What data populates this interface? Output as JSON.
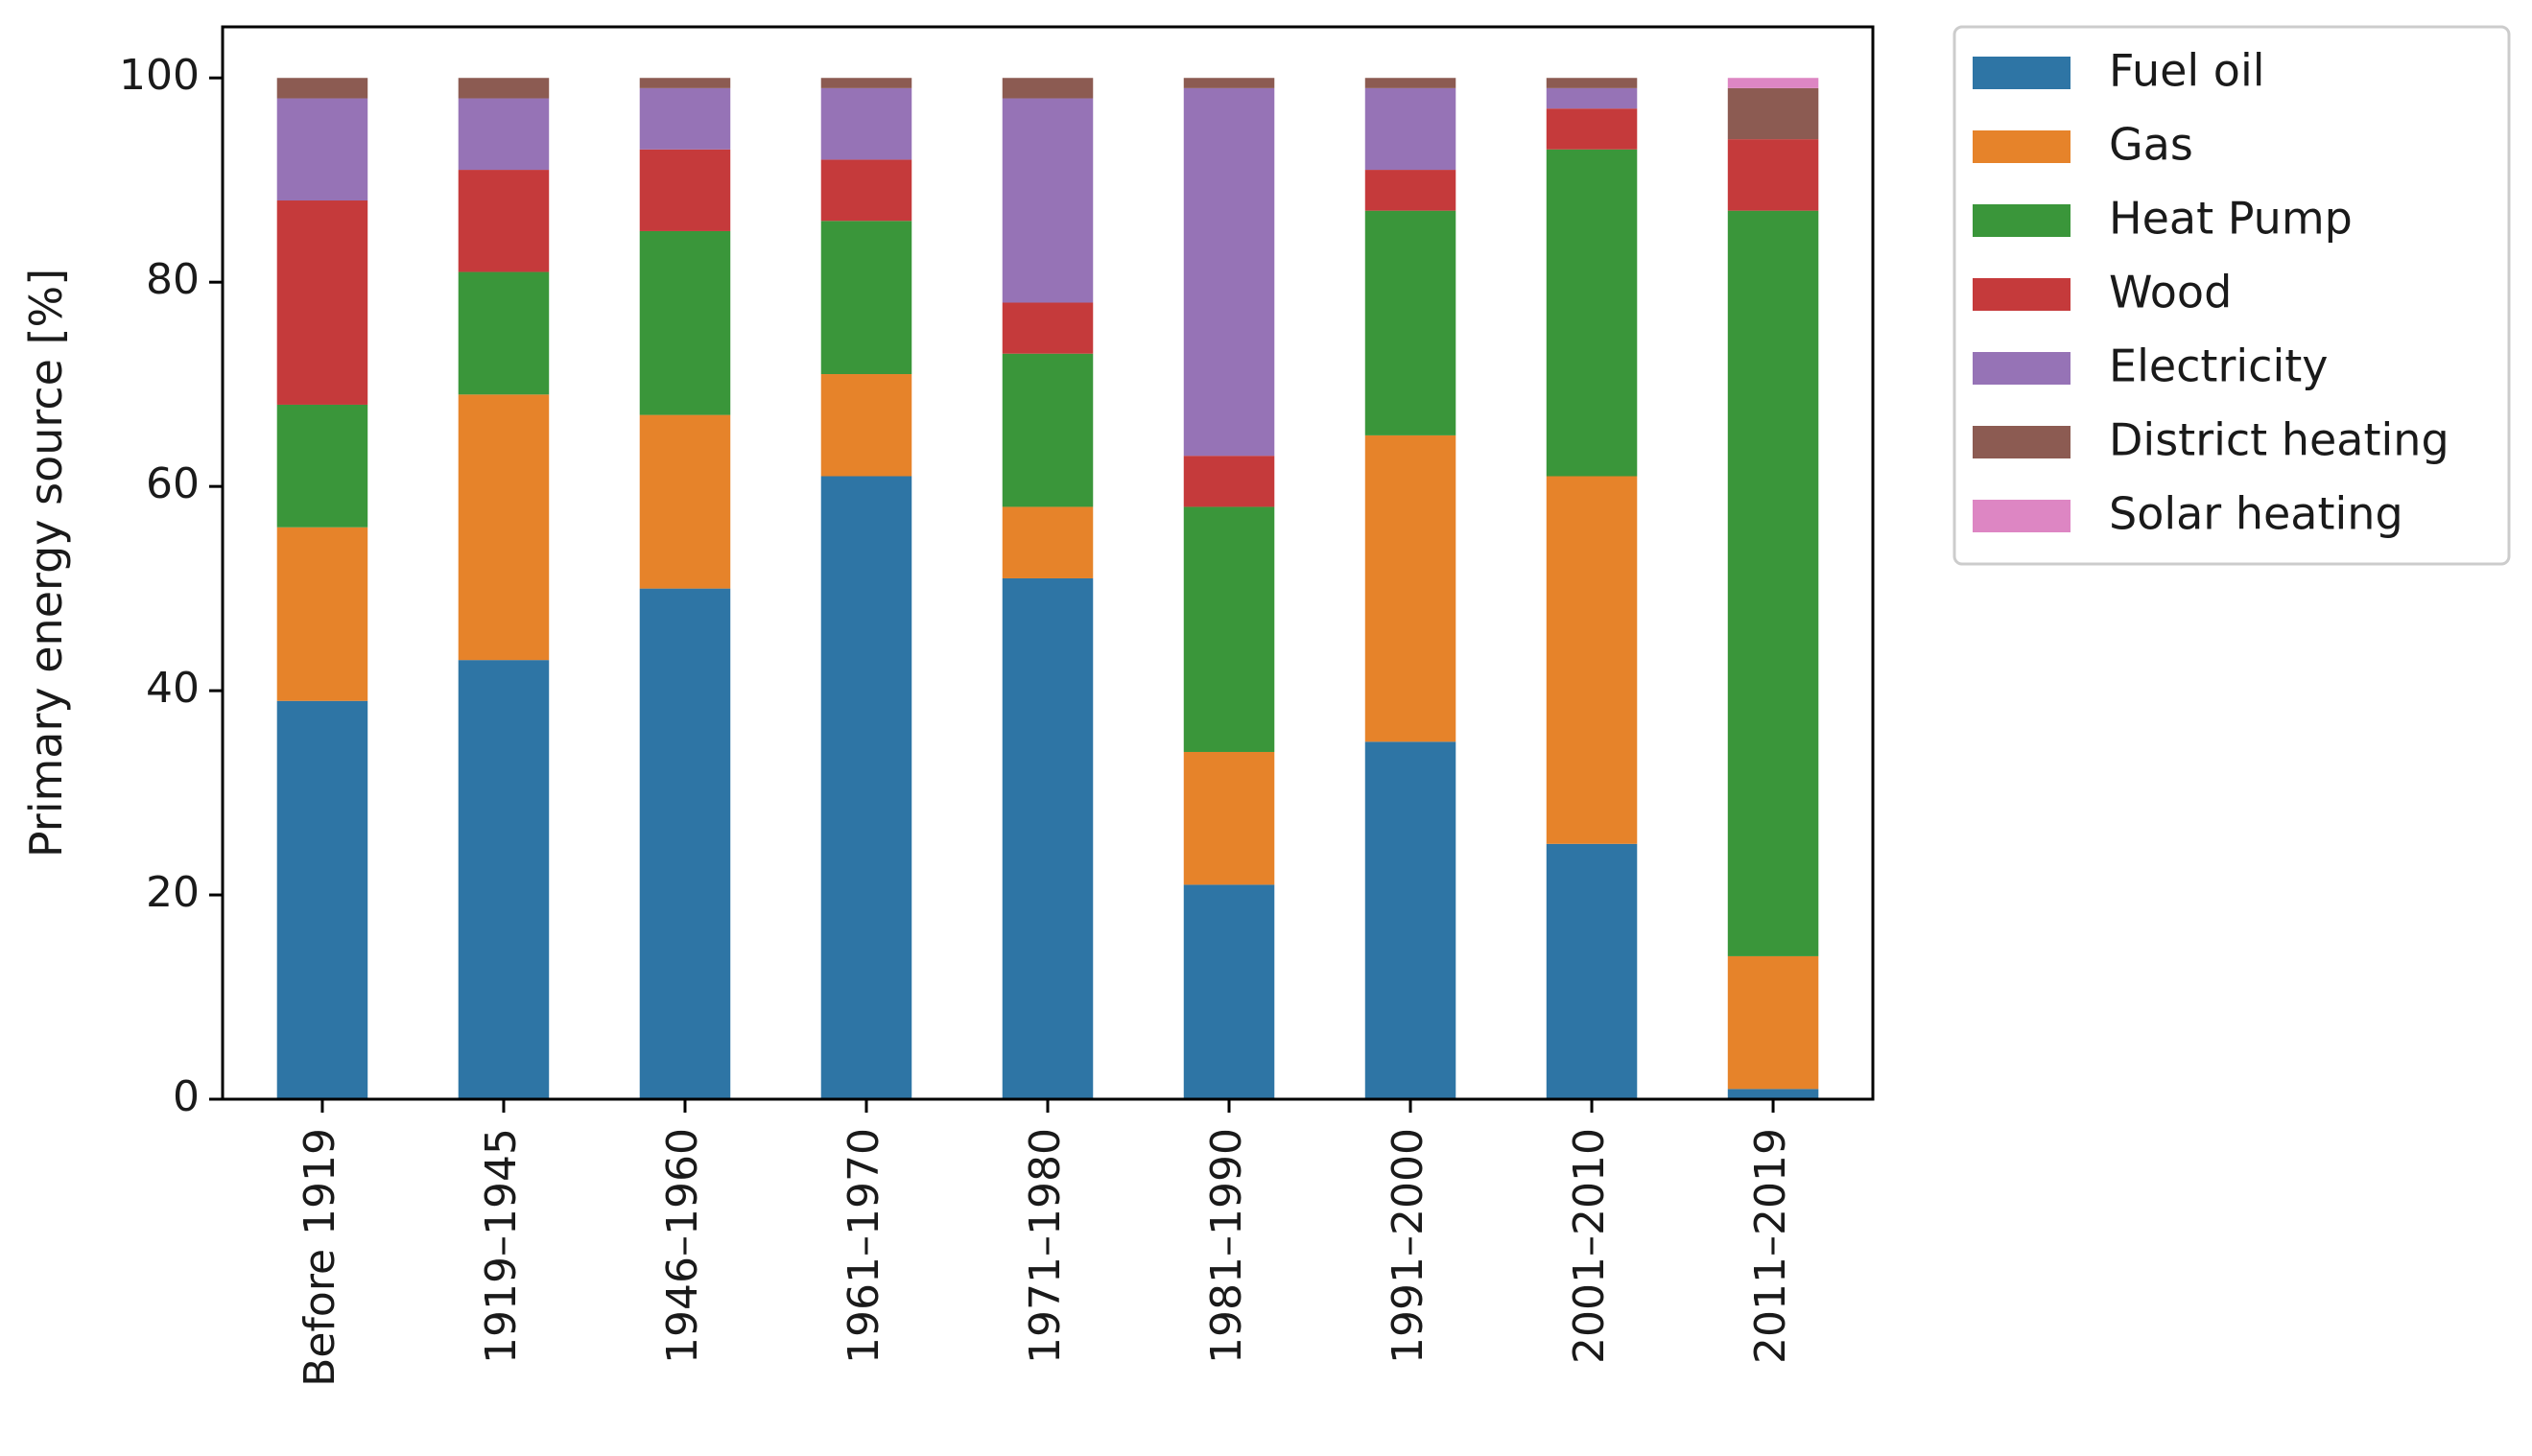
{
  "chart_data": {
    "type": "bar",
    "stacked": true,
    "title": "",
    "xlabel": "",
    "ylabel": "Primary energy source [%]",
    "ylim": [
      0,
      105
    ],
    "yticks": [
      0,
      20,
      40,
      60,
      80,
      100
    ],
    "grid": false,
    "legend_position": "outside right, top",
    "categories": [
      "Before 1919",
      "1919–1945",
      "1946–1960",
      "1961–1970",
      "1971–1980",
      "1981–1990",
      "1991–2000",
      "2001–2010",
      "2011–2019"
    ],
    "series": [
      {
        "name": "Fuel oil",
        "color": "#2e75a5",
        "values": [
          39,
          43,
          50,
          61,
          51,
          21,
          35,
          25,
          1
        ]
      },
      {
        "name": "Gas",
        "color": "#e6832a",
        "values": [
          17,
          26,
          17,
          10,
          7,
          13,
          30,
          36,
          13
        ]
      },
      {
        "name": "Heat Pump",
        "color": "#3a963a",
        "values": [
          12,
          12,
          18,
          15,
          15,
          24,
          22,
          32,
          73
        ]
      },
      {
        "name": "Wood",
        "color": "#c53a3b",
        "values": [
          20,
          10,
          8,
          6,
          5,
          5,
          4,
          4,
          7
        ]
      },
      {
        "name": "Electricity",
        "color": "#9673b6",
        "values": [
          10,
          7,
          6,
          7,
          20,
          36,
          8,
          2,
          0
        ]
      },
      {
        "name": "District heating",
        "color": "#8c5b52",
        "values": [
          2,
          2,
          1,
          1,
          2,
          1,
          1,
          1,
          5
        ]
      },
      {
        "name": "Solar heating",
        "color": "#dd86c3",
        "values": [
          0,
          0,
          0,
          0,
          0,
          0,
          0,
          0,
          1
        ]
      }
    ]
  }
}
